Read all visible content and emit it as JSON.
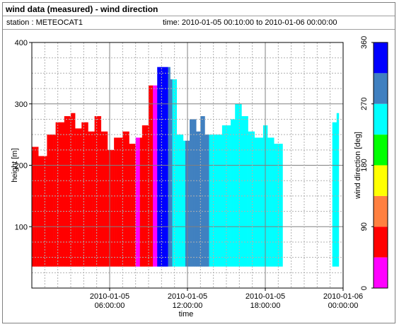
{
  "window": {
    "title": "wind data (measured) - wind direction"
  },
  "info": {
    "station": "station : METEOCAT1",
    "time_range": "time: 2010-01-05 00:10:00 to 2010-01-06 00:00:00"
  },
  "chart_data": {
    "type": "heatmap",
    "title": "wind data (measured) - wind direction",
    "xlabel": "time",
    "ylabel": "height [m]",
    "x_ticks": [
      {
        "value_hours": 6,
        "label_date": "2010-01-05",
        "label_time": "06:00:00"
      },
      {
        "value_hours": 12,
        "label_date": "2010-01-05",
        "label_time": "12:00:00"
      },
      {
        "value_hours": 18,
        "label_date": "2010-01-05",
        "label_time": "18:00:00"
      },
      {
        "value_hours": 24,
        "label_date": "2010-01-06",
        "label_time": "00:00:00"
      }
    ],
    "xlim_hours": [
      0,
      24
    ],
    "y_ticks": [
      100,
      200,
      300,
      400
    ],
    "ylim": [
      0,
      400
    ],
    "grid": true,
    "colorbar": {
      "label": "wind direction [deg]",
      "ticks": [
        0,
        90,
        180,
        270,
        360
      ],
      "range": [
        0,
        360
      ],
      "bins": [
        {
          "from": 0,
          "to": 45,
          "color": "#ff00ff"
        },
        {
          "from": 45,
          "to": 90,
          "color": "#ff0000"
        },
        {
          "from": 90,
          "to": 135,
          "color": "#ff8040"
        },
        {
          "from": 135,
          "to": 180,
          "color": "#ffff00"
        },
        {
          "from": 180,
          "to": 225,
          "color": "#00ff00"
        },
        {
          "from": 225,
          "to": 270,
          "color": "#00ffff"
        },
        {
          "from": 270,
          "to": 315,
          "color": "#4080c0"
        },
        {
          "from": 315,
          "to": 360,
          "color": "#0000ff"
        }
      ]
    },
    "height_min_m": 35,
    "segments": [
      {
        "t0": 0.0,
        "t1": 7.9,
        "dir": 67
      },
      {
        "t0": 7.9,
        "t1": 8.3,
        "dir": 22
      },
      {
        "t0": 8.3,
        "t1": 9.3,
        "dir": 67
      },
      {
        "t0": 9.3,
        "t1": 9.6,
        "dir": 22
      },
      {
        "t0": 9.6,
        "t1": 10.4,
        "dir": 337
      },
      {
        "t0": 10.4,
        "t1": 10.7,
        "dir": 292
      },
      {
        "t0": 10.7,
        "t1": 11.8,
        "dir": 247
      },
      {
        "t0": 11.8,
        "t1": 13.5,
        "dir": 292
      },
      {
        "t0": 13.5,
        "t1": 19.3,
        "dir": 247
      },
      {
        "t0": 23.1,
        "t1": 23.6,
        "dir": 247
      }
    ],
    "profile": [
      [
        0,
        230
      ],
      [
        0.4,
        215
      ],
      [
        1.1,
        250
      ],
      [
        1.8,
        270
      ],
      [
        2.4,
        280
      ],
      [
        2.9,
        285
      ],
      [
        3.3,
        260
      ],
      [
        3.8,
        270
      ],
      [
        4.3,
        255
      ],
      [
        4.8,
        280
      ],
      [
        5.3,
        255
      ],
      [
        5.8,
        225
      ],
      [
        6.3,
        245
      ],
      [
        6.9,
        255
      ],
      [
        7.5,
        235
      ],
      [
        8.0,
        245
      ],
      [
        8.5,
        265
      ],
      [
        8.9,
        330
      ],
      [
        9.6,
        360
      ],
      [
        10.3,
        360
      ],
      [
        10.5,
        340
      ],
      [
        11.0,
        250
      ],
      [
        11.5,
        240
      ],
      [
        12.0,
        275
      ],
      [
        12.5,
        255
      ],
      [
        12.9,
        280
      ],
      [
        13.3,
        250
      ],
      [
        14.0,
        250
      ],
      [
        14.6,
        265
      ],
      [
        15.2,
        275
      ],
      [
        15.6,
        300
      ],
      [
        16.1,
        280
      ],
      [
        16.6,
        255
      ],
      [
        17.1,
        245
      ],
      [
        17.7,
        265
      ],
      [
        18.1,
        245
      ],
      [
        18.6,
        235
      ],
      [
        19.3,
        185
      ],
      [
        23.1,
        270
      ],
      [
        23.4,
        285
      ],
      [
        23.6,
        250
      ]
    ],
    "data_gap_hours": [
      19.3,
      23.1
    ]
  }
}
